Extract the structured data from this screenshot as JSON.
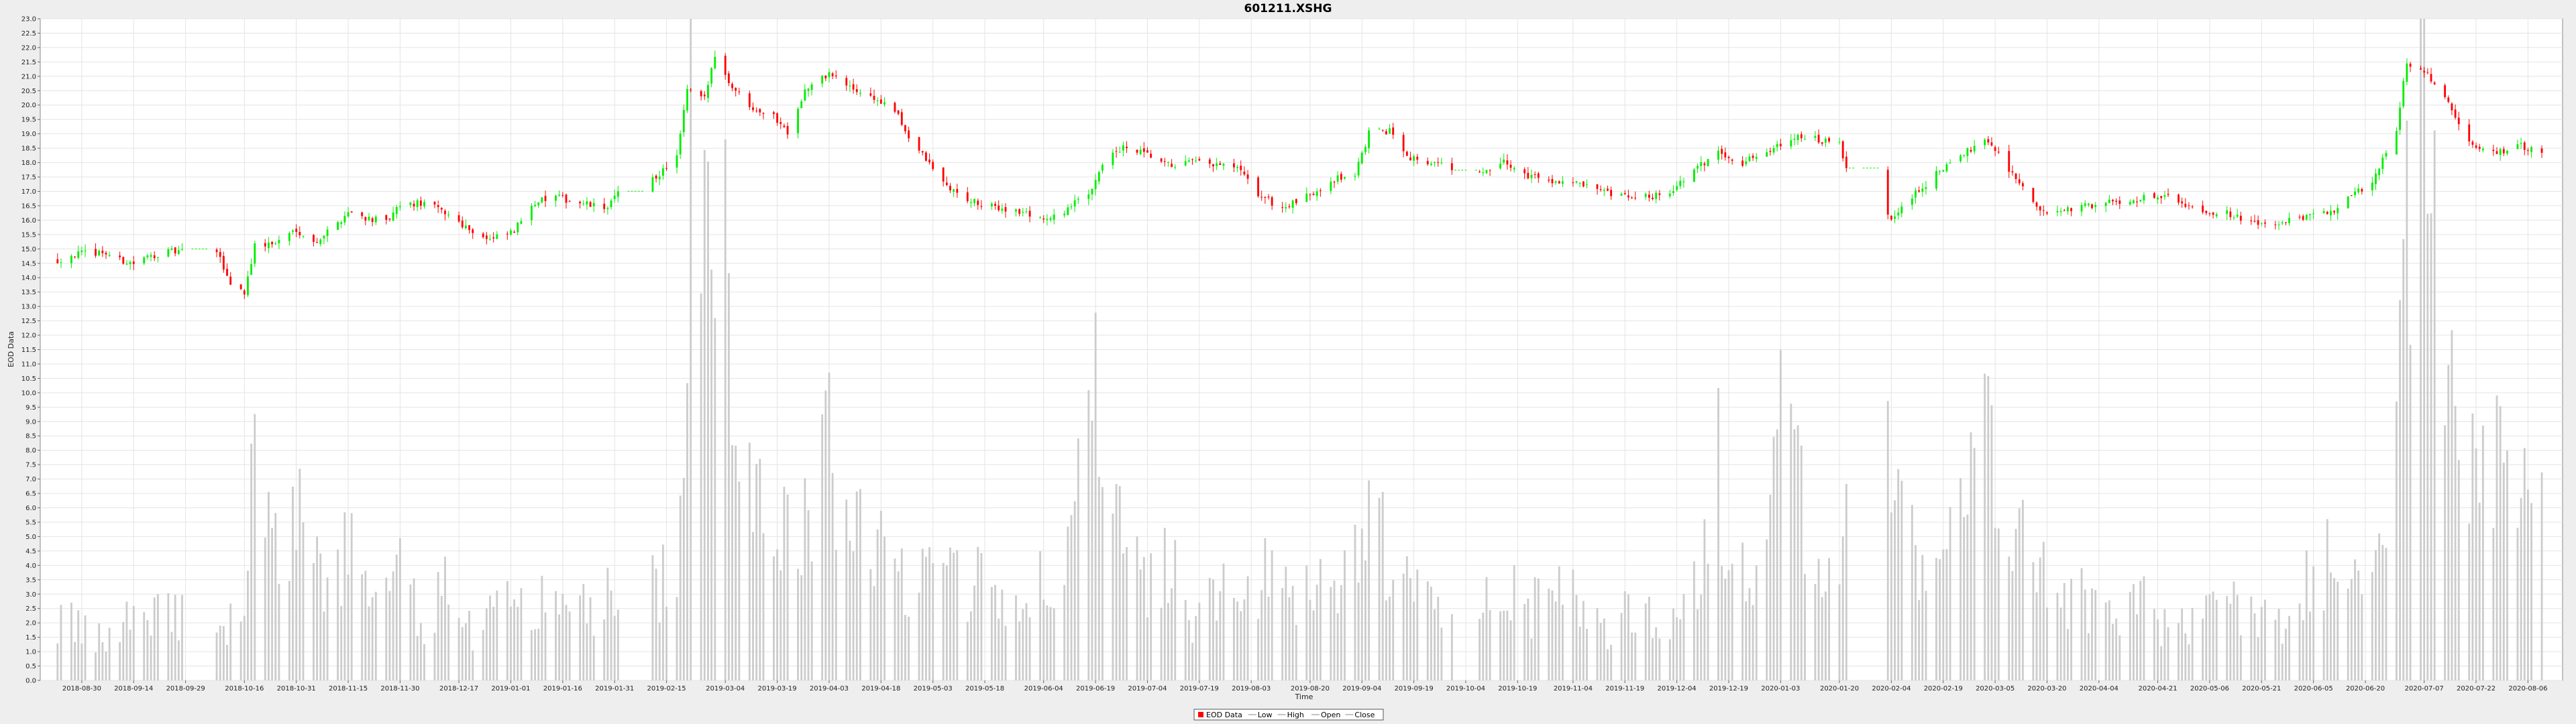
{
  "chart_data": {
    "type": "candlestick",
    "title": "601211.XSHG",
    "xlabel": "Time",
    "ylabel": "EOD Data",
    "ylim": [
      0.0,
      23.0
    ],
    "ytick_step": 0.5,
    "grid": true,
    "legend_position": "bottom-center",
    "x_tick_labels": [
      "2018-08-30",
      "2018-09-14",
      "2018-09-29",
      "2018-10-16",
      "2018-10-31",
      "2018-11-15",
      "2018-11-30",
      "2018-12-17",
      "2019-01-01",
      "2019-01-16",
      "2019-01-31",
      "2019-02-15",
      "2019-03-04",
      "2019-03-19",
      "2019-04-03",
      "2019-04-18",
      "2019-05-03",
      "2019-05-18",
      "2019-06-04",
      "2019-06-19",
      "2019-07-04",
      "2019-07-19",
      "2019-08-03",
      "2019-08-20",
      "2019-09-04",
      "2019-09-19",
      "2019-10-04",
      "2019-10-19",
      "2019-11-04",
      "2019-11-19",
      "2019-12-04",
      "2019-12-19",
      "2020-01-03",
      "2020-01-20",
      "2020-02-04",
      "2020-02-19",
      "2020-03-05",
      "2020-03-20",
      "2020-04-04",
      "2020-04-21",
      "2020-05-06",
      "2020-05-21",
      "2020-06-05",
      "2020-06-20",
      "2020-07-07",
      "2020-07-22",
      "2020-08-06"
    ],
    "legend": [
      {
        "label": "EOD Data",
        "color": "#ff0000"
      },
      {
        "label": "Low",
        "color": "#888888"
      },
      {
        "label": "High",
        "color": "#888888"
      },
      {
        "label": "Open",
        "color": "#888888"
      },
      {
        "label": "Close",
        "color": "#888888"
      }
    ],
    "colors": {
      "up": "#00ee00",
      "down": "#ff0000",
      "volume": "#cccccc",
      "grid": "#e4e4e4"
    },
    "close_points": [
      [
        "2018-08-23",
        14.6
      ],
      [
        "2018-08-27",
        14.8
      ],
      [
        "2018-09-05",
        14.9
      ],
      [
        "2018-09-10",
        14.6
      ],
      [
        "2018-09-14",
        14.5
      ],
      [
        "2018-09-20",
        14.8
      ],
      [
        "2018-09-25",
        14.9
      ],
      [
        "2018-10-08",
        14.9
      ],
      [
        "2018-10-12",
        13.8
      ],
      [
        "2018-10-16",
        13.5
      ],
      [
        "2018-10-19",
        15.1
      ],
      [
        "2018-10-25",
        15.2
      ],
      [
        "2018-10-31",
        15.7
      ],
      [
        "2018-11-05",
        15.2
      ],
      [
        "2018-11-12",
        15.9
      ],
      [
        "2018-11-15",
        16.3
      ],
      [
        "2018-11-20",
        16.1
      ],
      [
        "2018-11-26",
        15.9
      ],
      [
        "2018-11-30",
        16.5
      ],
      [
        "2018-12-07",
        16.6
      ],
      [
        "2018-12-14",
        16.2
      ],
      [
        "2018-12-20",
        15.7
      ],
      [
        "2018-12-26",
        15.3
      ],
      [
        "2019-01-02",
        15.6
      ],
      [
        "2019-01-07",
        16.6
      ],
      [
        "2019-01-14",
        16.8
      ],
      [
        "2019-01-21",
        16.6
      ],
      [
        "2019-01-28",
        16.4
      ],
      [
        "2019-02-01",
        16.9
      ],
      [
        "2019-02-12",
        17.5
      ],
      [
        "2019-02-18",
        18.2
      ],
      [
        "2019-02-21",
        20.5
      ],
      [
        "2019-02-26",
        20.2
      ],
      [
        "2019-03-01",
        21.8
      ],
      [
        "2019-03-05",
        20.8
      ],
      [
        "2019-03-11",
        20.0
      ],
      [
        "2019-03-18",
        19.6
      ],
      [
        "2019-03-22",
        19.1
      ],
      [
        "2019-03-27",
        20.5
      ],
      [
        "2019-04-03",
        21.1
      ],
      [
        "2019-04-09",
        20.6
      ],
      [
        "2019-04-15",
        20.3
      ],
      [
        "2019-04-22",
        19.8
      ],
      [
        "2019-04-26",
        18.9
      ],
      [
        "2019-05-06",
        17.3
      ],
      [
        "2019-05-10",
        16.9
      ],
      [
        "2019-05-17",
        16.5
      ],
      [
        "2019-05-24",
        16.4
      ],
      [
        "2019-05-31",
        16.2
      ],
      [
        "2019-06-06",
        16.0
      ],
      [
        "2019-06-12",
        16.5
      ],
      [
        "2019-06-17",
        16.9
      ],
      [
        "2019-06-21",
        18.0
      ],
      [
        "2019-06-27",
        18.5
      ],
      [
        "2019-07-03",
        18.3
      ],
      [
        "2019-07-10",
        17.9
      ],
      [
        "2019-07-17",
        18.0
      ],
      [
        "2019-07-24",
        17.9
      ],
      [
        "2019-07-30",
        17.8
      ],
      [
        "2019-08-05",
        16.9
      ],
      [
        "2019-08-12",
        16.4
      ],
      [
        "2019-08-19",
        16.8
      ],
      [
        "2019-08-26",
        17.4
      ],
      [
        "2019-09-02",
        17.6
      ],
      [
        "2019-09-06",
        19.0
      ],
      [
        "2019-09-12",
        19.1
      ],
      [
        "2019-09-18",
        18.2
      ],
      [
        "2019-09-24",
        18.0
      ],
      [
        "2019-10-01",
        17.8
      ],
      [
        "2019-10-09",
        17.6
      ],
      [
        "2019-10-15",
        18.0
      ],
      [
        "2019-10-21",
        17.6
      ],
      [
        "2019-10-28",
        17.4
      ],
      [
        "2019-11-04",
        17.3
      ],
      [
        "2019-11-11",
        17.0
      ],
      [
        "2019-11-18",
        16.8
      ],
      [
        "2019-11-25",
        16.8
      ],
      [
        "2019-12-02",
        17.0
      ],
      [
        "2019-12-09",
        17.7
      ],
      [
        "2019-12-16",
        18.4
      ],
      [
        "2019-12-23",
        18.0
      ],
      [
        "2019-12-30",
        18.4
      ],
      [
        "2020-01-06",
        18.9
      ],
      [
        "2020-01-13",
        18.8
      ],
      [
        "2020-01-20",
        18.6
      ],
      [
        "2020-01-22",
        17.8
      ],
      [
        "2020-02-04",
        16.0
      ],
      [
        "2020-02-10",
        16.8
      ],
      [
        "2020-02-17",
        17.6
      ],
      [
        "2020-02-24",
        18.2
      ],
      [
        "2020-03-02",
        18.9
      ],
      [
        "2020-03-06",
        18.3
      ],
      [
        "2020-03-12",
        17.3
      ],
      [
        "2020-03-17",
        16.4
      ],
      [
        "2020-03-23",
        16.2
      ],
      [
        "2020-03-30",
        16.5
      ],
      [
        "2020-04-07",
        16.6
      ],
      [
        "2020-04-14",
        16.7
      ],
      [
        "2020-04-21",
        16.9
      ],
      [
        "2020-04-28",
        16.6
      ],
      [
        "2020-05-06",
        16.3
      ],
      [
        "2020-05-13",
        16.2
      ],
      [
        "2020-05-20",
        15.8
      ],
      [
        "2020-05-27",
        15.9
      ],
      [
        "2020-06-03",
        16.1
      ],
      [
        "2020-06-10",
        16.3
      ],
      [
        "2020-06-17",
        16.9
      ],
      [
        "2020-06-23",
        17.5
      ],
      [
        "2020-06-29",
        19.2
      ],
      [
        "2020-07-02",
        21.5
      ],
      [
        "2020-07-08",
        21.1
      ],
      [
        "2020-07-14",
        20.0
      ],
      [
        "2020-07-20",
        18.7
      ],
      [
        "2020-07-27",
        18.3
      ],
      [
        "2020-08-03",
        18.6
      ],
      [
        "2020-08-10",
        18.3
      ]
    ],
    "volume_points": [
      [
        "2018-08-23",
        2.3
      ],
      [
        "2018-09-05",
        1.4
      ],
      [
        "2018-09-14",
        2.7
      ],
      [
        "2018-09-25",
        2.6
      ],
      [
        "2018-10-09",
        1.5
      ],
      [
        "2018-10-16",
        2.8
      ],
      [
        "2018-10-19",
        9.2
      ],
      [
        "2018-10-24",
        4.2
      ],
      [
        "2018-10-31",
        6.4
      ],
      [
        "2018-11-08",
        3.2
      ],
      [
        "2018-11-15",
        5.1
      ],
      [
        "2018-11-22",
        2.5
      ],
      [
        "2018-11-30",
        3.8
      ],
      [
        "2018-12-07",
        2.1
      ],
      [
        "2018-12-14",
        3.7
      ],
      [
        "2018-12-21",
        1.8
      ],
      [
        "2018-12-27",
        2.4
      ],
      [
        "2019-01-04",
        3.6
      ],
      [
        "2019-01-11",
        2.6
      ],
      [
        "2019-01-18",
        3.0
      ],
      [
        "2019-01-25",
        2.5
      ],
      [
        "2019-01-31",
        3.3
      ],
      [
        "2019-02-13",
        3.6
      ],
      [
        "2019-02-19",
        4.9
      ],
      [
        "2019-02-22",
        23.0
      ],
      [
        "2019-02-26",
        14.0
      ],
      [
        "2019-03-01",
        13.0
      ],
      [
        "2019-03-04",
        15.0
      ],
      [
        "2019-03-08",
        10.5
      ],
      [
        "2019-03-12",
        8.5
      ],
      [
        "2019-03-18",
        6.0
      ],
      [
        "2019-03-25",
        5.0
      ],
      [
        "2019-03-29",
        6.6
      ],
      [
        "2019-04-04",
        8.5
      ],
      [
        "2019-04-10",
        6.4
      ],
      [
        "2019-04-17",
        4.8
      ],
      [
        "2019-04-24",
        3.6
      ],
      [
        "2019-05-06",
        5.9
      ],
      [
        "2019-05-13",
        3.4
      ],
      [
        "2019-05-20",
        4.1
      ],
      [
        "2019-05-27",
        2.7
      ],
      [
        "2019-06-03",
        3.4
      ],
      [
        "2019-06-10",
        4.2
      ],
      [
        "2019-06-14",
        6.5
      ],
      [
        "2019-06-17",
        11.5
      ],
      [
        "2019-06-21",
        7.6
      ],
      [
        "2019-06-27",
        4.6
      ],
      [
        "2019-07-04",
        3.3
      ],
      [
        "2019-07-10",
        4.6
      ],
      [
        "2019-07-17",
        2.3
      ],
      [
        "2019-07-24",
        3.1
      ],
      [
        "2019-07-31",
        2.8
      ],
      [
        "2019-08-07",
        3.8
      ],
      [
        "2019-08-14",
        2.9
      ],
      [
        "2019-08-21",
        4.0
      ],
      [
        "2019-08-28",
        3.0
      ],
      [
        "2019-09-04",
        5.6
      ],
      [
        "2019-09-09",
        5.2
      ],
      [
        "2019-09-16",
        3.6
      ],
      [
        "2019-09-23",
        2.7
      ],
      [
        "2019-10-09",
        2.9
      ],
      [
        "2019-10-16",
        3.8
      ],
      [
        "2019-10-23",
        2.6
      ],
      [
        "2019-10-30",
        3.0
      ],
      [
        "2019-11-06",
        2.8
      ],
      [
        "2019-11-13",
        1.9
      ],
      [
        "2019-11-20",
        2.4
      ],
      [
        "2019-11-27",
        2.3
      ],
      [
        "2019-12-04",
        2.3
      ],
      [
        "2019-12-10",
        4.0
      ],
      [
        "2019-12-16",
        7.8
      ],
      [
        "2019-12-20",
        4.2
      ],
      [
        "2019-12-27",
        3.6
      ],
      [
        "2020-01-03",
        9.5
      ],
      [
        "2020-01-08",
        7.2
      ],
      [
        "2020-01-14",
        3.5
      ],
      [
        "2020-01-21",
        5.5
      ],
      [
        "2020-02-03",
        7.5
      ],
      [
        "2020-02-10",
        4.6
      ],
      [
        "2020-02-17",
        4.0
      ],
      [
        "2020-02-24",
        6.6
      ],
      [
        "2020-03-02",
        8.5
      ],
      [
        "2020-03-06",
        6.8
      ],
      [
        "2020-03-12",
        5.0
      ],
      [
        "2020-03-18",
        4.2
      ],
      [
        "2020-03-25",
        2.9
      ],
      [
        "2020-04-01",
        2.9
      ],
      [
        "2020-04-09",
        2.5
      ],
      [
        "2020-04-16",
        2.8
      ],
      [
        "2020-04-23",
        2.0
      ],
      [
        "2020-04-30",
        2.2
      ],
      [
        "2020-05-07",
        2.8
      ],
      [
        "2020-05-14",
        2.6
      ],
      [
        "2020-05-21",
        2.2
      ],
      [
        "2020-05-28",
        2.0
      ],
      [
        "2020-06-04",
        3.7
      ],
      [
        "2020-06-10",
        4.6
      ],
      [
        "2020-06-16",
        3.5
      ],
      [
        "2020-06-22",
        4.3
      ],
      [
        "2020-06-29",
        7.2
      ],
      [
        "2020-07-02",
        16.5
      ],
      [
        "2020-07-06",
        22.0
      ],
      [
        "2020-07-09",
        16.0
      ],
      [
        "2020-07-13",
        12.0
      ],
      [
        "2020-07-17",
        8.8
      ],
      [
        "2020-07-23",
        7.0
      ],
      [
        "2020-07-29",
        7.5
      ],
      [
        "2020-08-04",
        7.8
      ],
      [
        "2020-08-10",
        5.5
      ]
    ]
  }
}
